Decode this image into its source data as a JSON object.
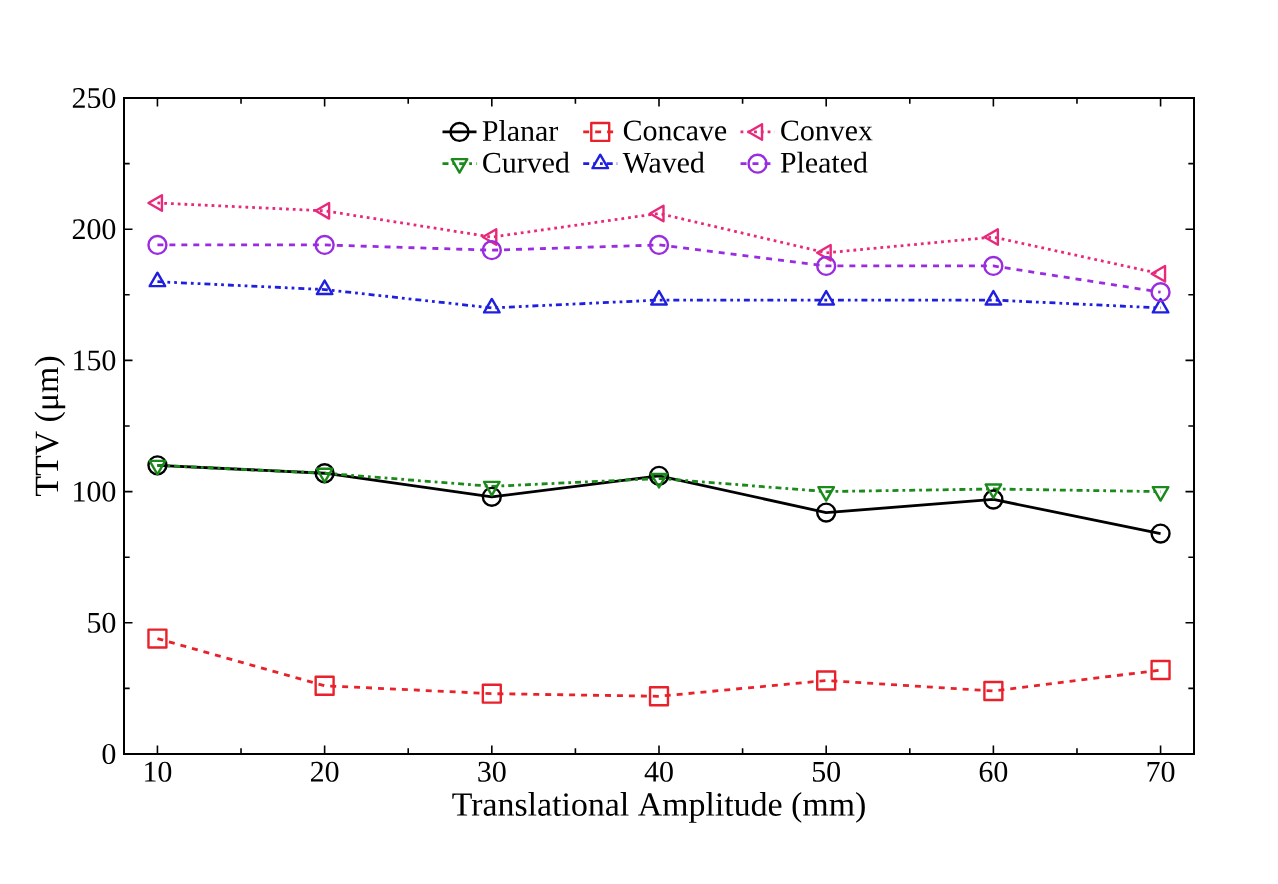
{
  "chart_data": {
    "type": "line",
    "xlabel": "Translational Amplitude (mm)",
    "ylabel": "TTV (μm)",
    "x": [
      10,
      20,
      30,
      40,
      50,
      60,
      70
    ],
    "xlim": [
      8,
      72
    ],
    "xticks": [
      10,
      20,
      30,
      40,
      50,
      60,
      70
    ],
    "ylim": [
      0,
      250
    ],
    "yticks": [
      0,
      50,
      100,
      150,
      200,
      250
    ],
    "legend": "top",
    "grid": false,
    "series": [
      {
        "name": "Planar",
        "color": "#000000",
        "marker": "circle",
        "line_style": "solid",
        "values": [
          110,
          107,
          98,
          106,
          92,
          97,
          84
        ]
      },
      {
        "name": "Concave",
        "color": "#e8212b",
        "marker": "square",
        "line_style": "dashed",
        "values": [
          44,
          26,
          23,
          22,
          28,
          24,
          32
        ]
      },
      {
        "name": "Convex",
        "color": "#e8287a",
        "marker": "triangle-left",
        "line_style": "dotted",
        "values": [
          210,
          207,
          197,
          206,
          191,
          197,
          183
        ]
      },
      {
        "name": "Curved",
        "color": "#1a8a1a",
        "marker": "triangle-down",
        "line_style": "dashdot",
        "values": [
          110,
          107,
          102,
          105,
          100,
          101,
          100
        ]
      },
      {
        "name": "Waved",
        "color": "#1f1fe0",
        "marker": "triangle",
        "line_style": "dashdotdot",
        "values": [
          180,
          177,
          170,
          173,
          173,
          173,
          170
        ]
      },
      {
        "name": "Pleated",
        "color": "#9a2be0",
        "marker": "circle",
        "line_style": "dashed",
        "values": [
          194,
          194,
          192,
          194,
          186,
          186,
          176
        ]
      }
    ]
  }
}
